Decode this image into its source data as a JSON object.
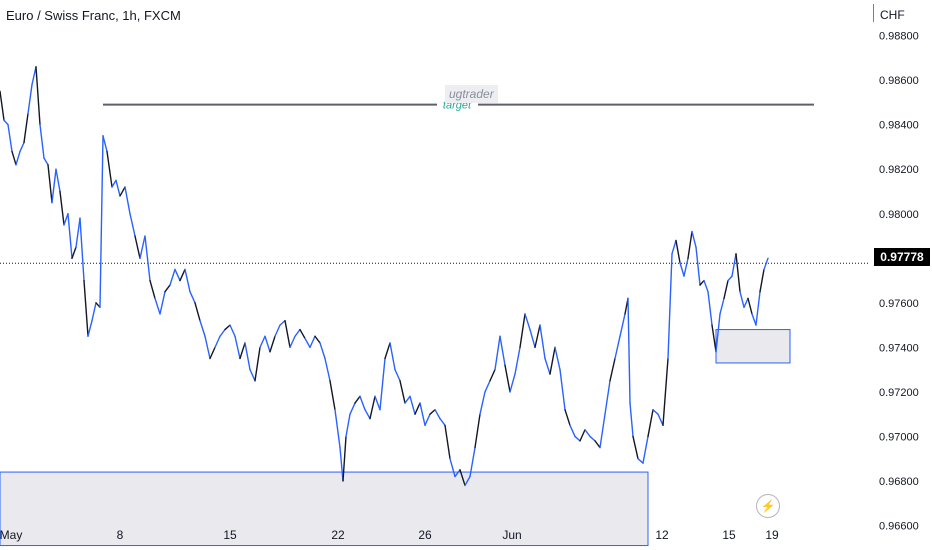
{
  "header": {
    "title": "Euro / Swiss Franc, 1h, FXCM",
    "unit": "CHF"
  },
  "watermark": "ugtrader",
  "current_price": "0.97778",
  "bolt_icon": "lightning-icon",
  "colors": {
    "line": "#2962ff",
    "dark": "#131722",
    "target_line": "#5d606b",
    "target_text": "#26a69a",
    "zone_fill": "#e9e9ee",
    "zone_border": "#2962ff"
  },
  "chart_data": {
    "type": "line",
    "title": "Euro / Swiss Franc, 1h, FXCM",
    "ylabel": "CHF",
    "ylim": [
      0.9649,
      0.9896
    ],
    "y_ticks": [
      "0.98800",
      "0.98600",
      "0.98400",
      "0.98200",
      "0.98000",
      "0.97600",
      "0.97400",
      "0.97200",
      "0.97000",
      "0.96800",
      "0.96600"
    ],
    "x_ticks": [
      "May",
      "8",
      "15",
      "22",
      "26",
      "Jun",
      "12",
      "15",
      "19"
    ],
    "grid": false,
    "series": [
      {
        "points": [
          [
            0,
            0.9855
          ],
          [
            4,
            0.9842
          ],
          [
            8,
            0.984
          ],
          [
            12,
            0.9828
          ],
          [
            16,
            0.9822
          ],
          [
            20,
            0.9828
          ],
          [
            24,
            0.9832
          ],
          [
            28,
            0.9845
          ],
          [
            32,
            0.9858
          ],
          [
            36,
            0.9866
          ],
          [
            40,
            0.984
          ],
          [
            44,
            0.9825
          ],
          [
            48,
            0.9822
          ],
          [
            52,
            0.9805
          ],
          [
            56,
            0.982
          ],
          [
            60,
            0.981
          ],
          [
            64,
            0.9795
          ],
          [
            68,
            0.98
          ],
          [
            72,
            0.978
          ],
          [
            76,
            0.9785
          ],
          [
            80,
            0.9798
          ],
          [
            84,
            0.977
          ],
          [
            88,
            0.9745
          ],
          [
            92,
            0.9752
          ],
          [
            96,
            0.976
          ],
          [
            100,
            0.9758
          ],
          [
            103,
            0.9835
          ],
          [
            107,
            0.9828
          ],
          [
            112,
            0.9812
          ],
          [
            116,
            0.9815
          ],
          [
            120,
            0.9808
          ],
          [
            125,
            0.9812
          ],
          [
            130,
            0.98
          ],
          [
            135,
            0.979
          ],
          [
            140,
            0.978
          ],
          [
            145,
            0.979
          ],
          [
            150,
            0.977
          ],
          [
            155,
            0.9762
          ],
          [
            160,
            0.9755
          ],
          [
            165,
            0.9765
          ],
          [
            170,
            0.9768
          ],
          [
            175,
            0.9775
          ],
          [
            180,
            0.977
          ],
          [
            185,
            0.9775
          ],
          [
            190,
            0.9765
          ],
          [
            195,
            0.976
          ],
          [
            200,
            0.9752
          ],
          [
            205,
            0.9745
          ],
          [
            210,
            0.9735
          ],
          [
            215,
            0.974
          ],
          [
            220,
            0.9745
          ],
          [
            225,
            0.9748
          ],
          [
            230,
            0.975
          ],
          [
            235,
            0.9745
          ],
          [
            240,
            0.9735
          ],
          [
            245,
            0.9742
          ],
          [
            250,
            0.973
          ],
          [
            255,
            0.9725
          ],
          [
            260,
            0.974
          ],
          [
            265,
            0.9745
          ],
          [
            270,
            0.9738
          ],
          [
            275,
            0.9745
          ],
          [
            280,
            0.975
          ],
          [
            285,
            0.9752
          ],
          [
            290,
            0.974
          ],
          [
            295,
            0.9745
          ],
          [
            300,
            0.9748
          ],
          [
            305,
            0.9744
          ],
          [
            310,
            0.974
          ],
          [
            315,
            0.9745
          ],
          [
            320,
            0.9742
          ],
          [
            325,
            0.9735
          ],
          [
            330,
            0.9725
          ],
          [
            335,
            0.9712
          ],
          [
            340,
            0.9695
          ],
          [
            343,
            0.968
          ],
          [
            346,
            0.97
          ],
          [
            350,
            0.971
          ],
          [
            355,
            0.9715
          ],
          [
            360,
            0.9718
          ],
          [
            365,
            0.9712
          ],
          [
            370,
            0.9708
          ],
          [
            375,
            0.9718
          ],
          [
            380,
            0.9712
          ],
          [
            385,
            0.9735
          ],
          [
            390,
            0.9742
          ],
          [
            395,
            0.973
          ],
          [
            400,
            0.9725
          ],
          [
            405,
            0.9715
          ],
          [
            410,
            0.9718
          ],
          [
            415,
            0.971
          ],
          [
            420,
            0.9715
          ],
          [
            425,
            0.9705
          ],
          [
            430,
            0.971
          ],
          [
            435,
            0.9712
          ],
          [
            440,
            0.9708
          ],
          [
            445,
            0.9705
          ],
          [
            450,
            0.969
          ],
          [
            455,
            0.9682
          ],
          [
            460,
            0.9685
          ],
          [
            465,
            0.9678
          ],
          [
            470,
            0.9682
          ],
          [
            475,
            0.9695
          ],
          [
            480,
            0.971
          ],
          [
            485,
            0.972
          ],
          [
            490,
            0.9725
          ],
          [
            495,
            0.973
          ],
          [
            500,
            0.9745
          ],
          [
            505,
            0.9732
          ],
          [
            510,
            0.972
          ],
          [
            515,
            0.9728
          ],
          [
            520,
            0.974
          ],
          [
            525,
            0.9755
          ],
          [
            530,
            0.9748
          ],
          [
            535,
            0.974
          ],
          [
            540,
            0.975
          ],
          [
            545,
            0.9735
          ],
          [
            550,
            0.9728
          ],
          [
            555,
            0.974
          ],
          [
            560,
            0.973
          ],
          [
            565,
            0.9712
          ],
          [
            570,
            0.9705
          ],
          [
            575,
            0.97
          ],
          [
            580,
            0.9698
          ],
          [
            585,
            0.9703
          ],
          [
            590,
            0.97
          ],
          [
            595,
            0.9698
          ],
          [
            600,
            0.9695
          ],
          [
            605,
            0.971
          ],
          [
            610,
            0.9725
          ],
          [
            615,
            0.9735
          ],
          [
            620,
            0.9745
          ],
          [
            625,
            0.9755
          ],
          [
            628,
            0.9762
          ],
          [
            630,
            0.9715
          ],
          [
            633,
            0.97
          ],
          [
            638,
            0.969
          ],
          [
            643,
            0.9688
          ],
          [
            648,
            0.97
          ],
          [
            653,
            0.9712
          ],
          [
            658,
            0.971
          ],
          [
            663,
            0.9705
          ],
          [
            668,
            0.9735
          ],
          [
            672,
            0.9782
          ],
          [
            676,
            0.9788
          ],
          [
            680,
            0.9778
          ],
          [
            684,
            0.9772
          ],
          [
            688,
            0.978
          ],
          [
            692,
            0.9792
          ],
          [
            696,
            0.9785
          ],
          [
            700,
            0.9768
          ],
          [
            704,
            0.977
          ],
          [
            708,
            0.9765
          ],
          [
            712,
            0.975
          ],
          [
            716,
            0.9738
          ],
          [
            720,
            0.9755
          ],
          [
            724,
            0.9762
          ],
          [
            728,
            0.977
          ],
          [
            732,
            0.9772
          ],
          [
            736,
            0.9782
          ],
          [
            740,
            0.9765
          ],
          [
            744,
            0.9758
          ],
          [
            748,
            0.9762
          ],
          [
            752,
            0.9755
          ],
          [
            756,
            0.975
          ],
          [
            760,
            0.9765
          ],
          [
            764,
            0.9775
          ],
          [
            768,
            0.978
          ]
        ]
      }
    ],
    "target_level": 0.9849,
    "target_label": "target",
    "zones": [
      {
        "from": 0,
        "to": 648,
        "y_top": 0.9684,
        "y_bottom": 0.9651
      },
      {
        "from": 716,
        "to": 790,
        "y_top": 0.9748,
        "y_bottom": 0.9733
      }
    ],
    "current_level": 0.97778
  }
}
